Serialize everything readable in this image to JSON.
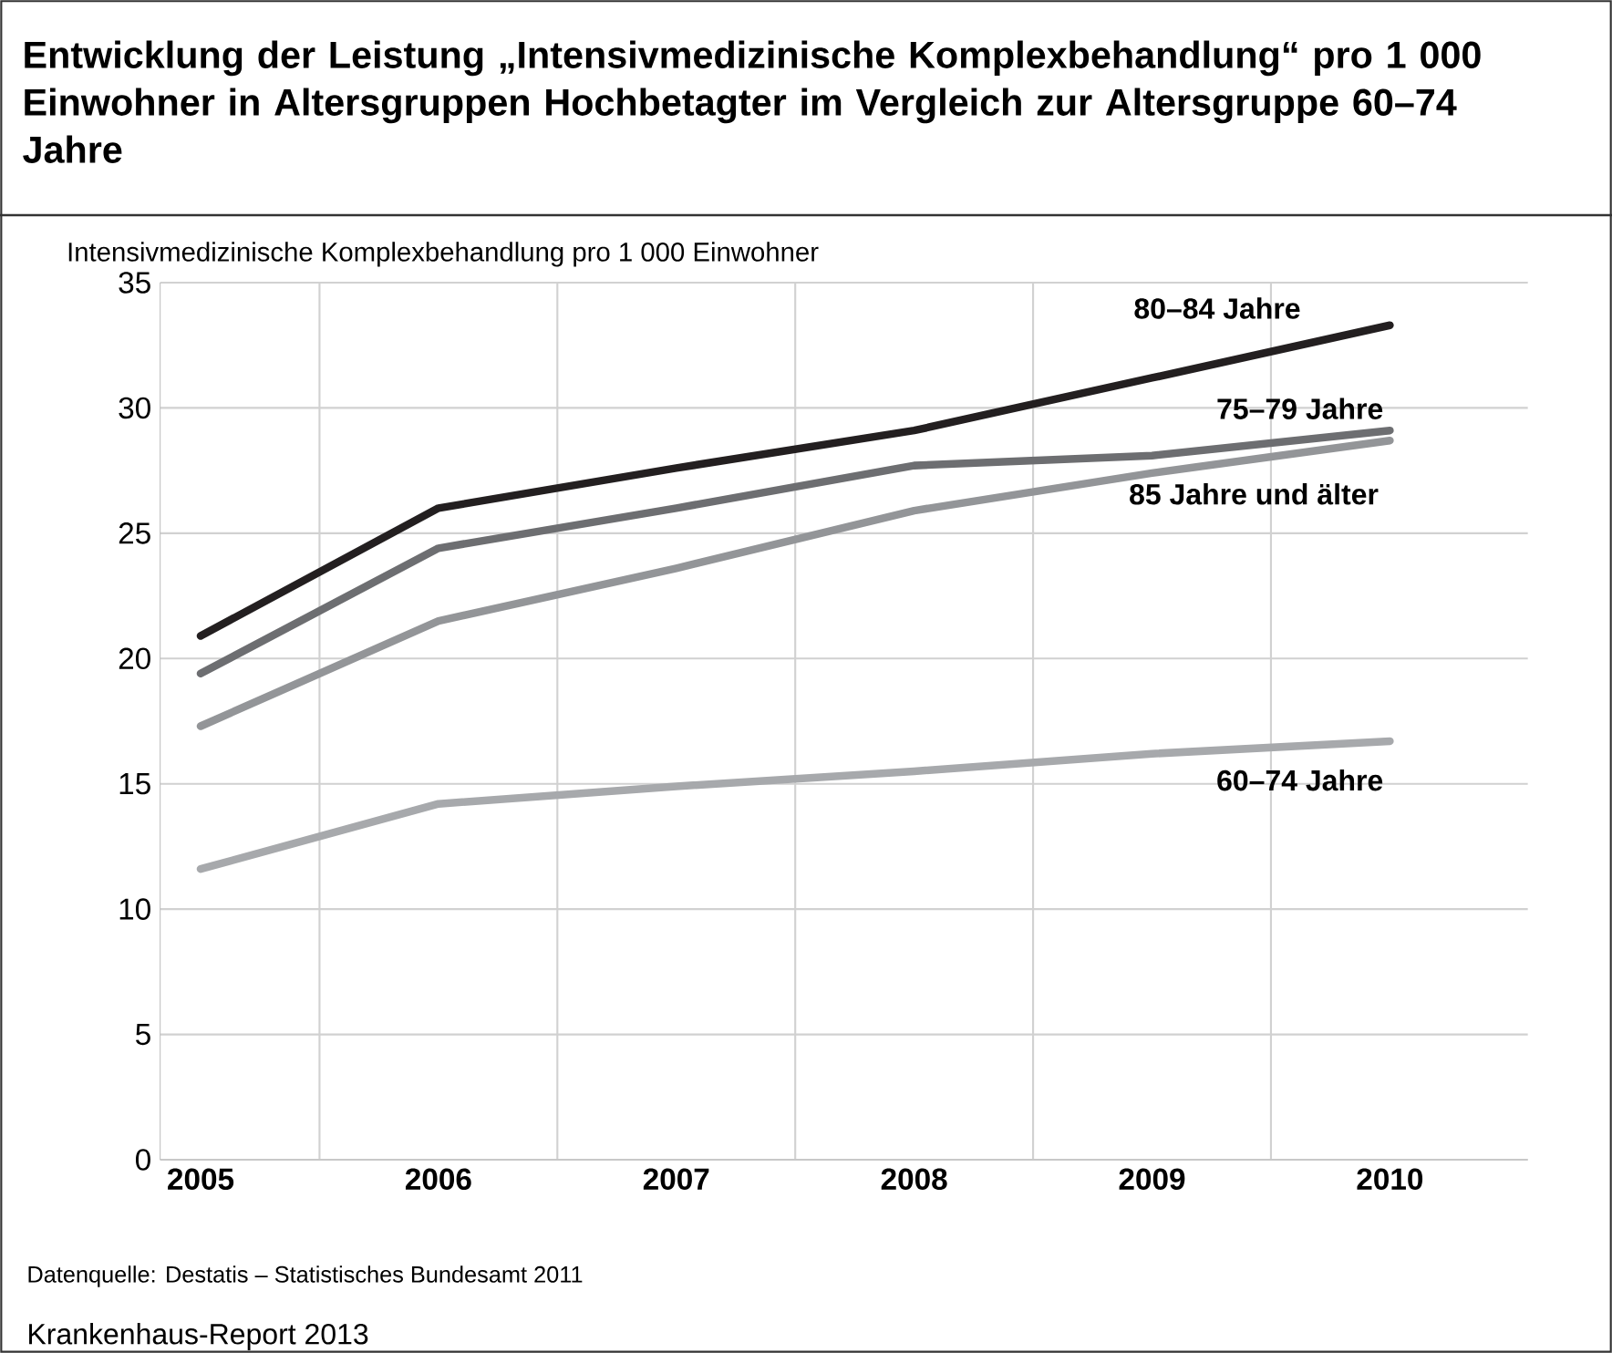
{
  "chart_data": {
    "type": "line",
    "title": "Entwicklung der Leistung „Intensivmedizinische Komplexbehandlung“ pro 1 000 Einwohner in Altersgruppen Hochbetagter im Vergleich zur Altersgruppe 60–74 Jahre",
    "ylabel": "Intensivmedizinische Komplexbehandlung pro 1 000 Einwohner",
    "categories": [
      "2005",
      "2006",
      "2007",
      "2008",
      "2009",
      "2010"
    ],
    "series": [
      {
        "name": "80–84 Jahre",
        "color": "#231f20",
        "values": [
          20.9,
          26.0,
          27.6,
          29.1,
          31.2,
          33.3
        ]
      },
      {
        "name": "75–79 Jahre",
        "color": "#6d6e71",
        "values": [
          19.4,
          24.4,
          26.0,
          27.7,
          28.1,
          29.1
        ]
      },
      {
        "name": "85 Jahre und älter",
        "color": "#939598",
        "values": [
          17.3,
          21.5,
          23.6,
          25.9,
          27.4,
          28.7
        ]
      },
      {
        "name": "60–74 Jahre",
        "color": "#a7a9ac",
        "values": [
          11.6,
          14.2,
          14.9,
          15.5,
          16.2,
          16.7
        ]
      }
    ],
    "ylim": [
      0,
      35
    ],
    "yticks": [
      0,
      5,
      10,
      15,
      20,
      25,
      30,
      35
    ],
    "grid": true,
    "annotations": [
      "Datenquelle: Destatis – Statistisches Bundesamt 2011",
      "Krankenhaus-Report 2013"
    ]
  }
}
